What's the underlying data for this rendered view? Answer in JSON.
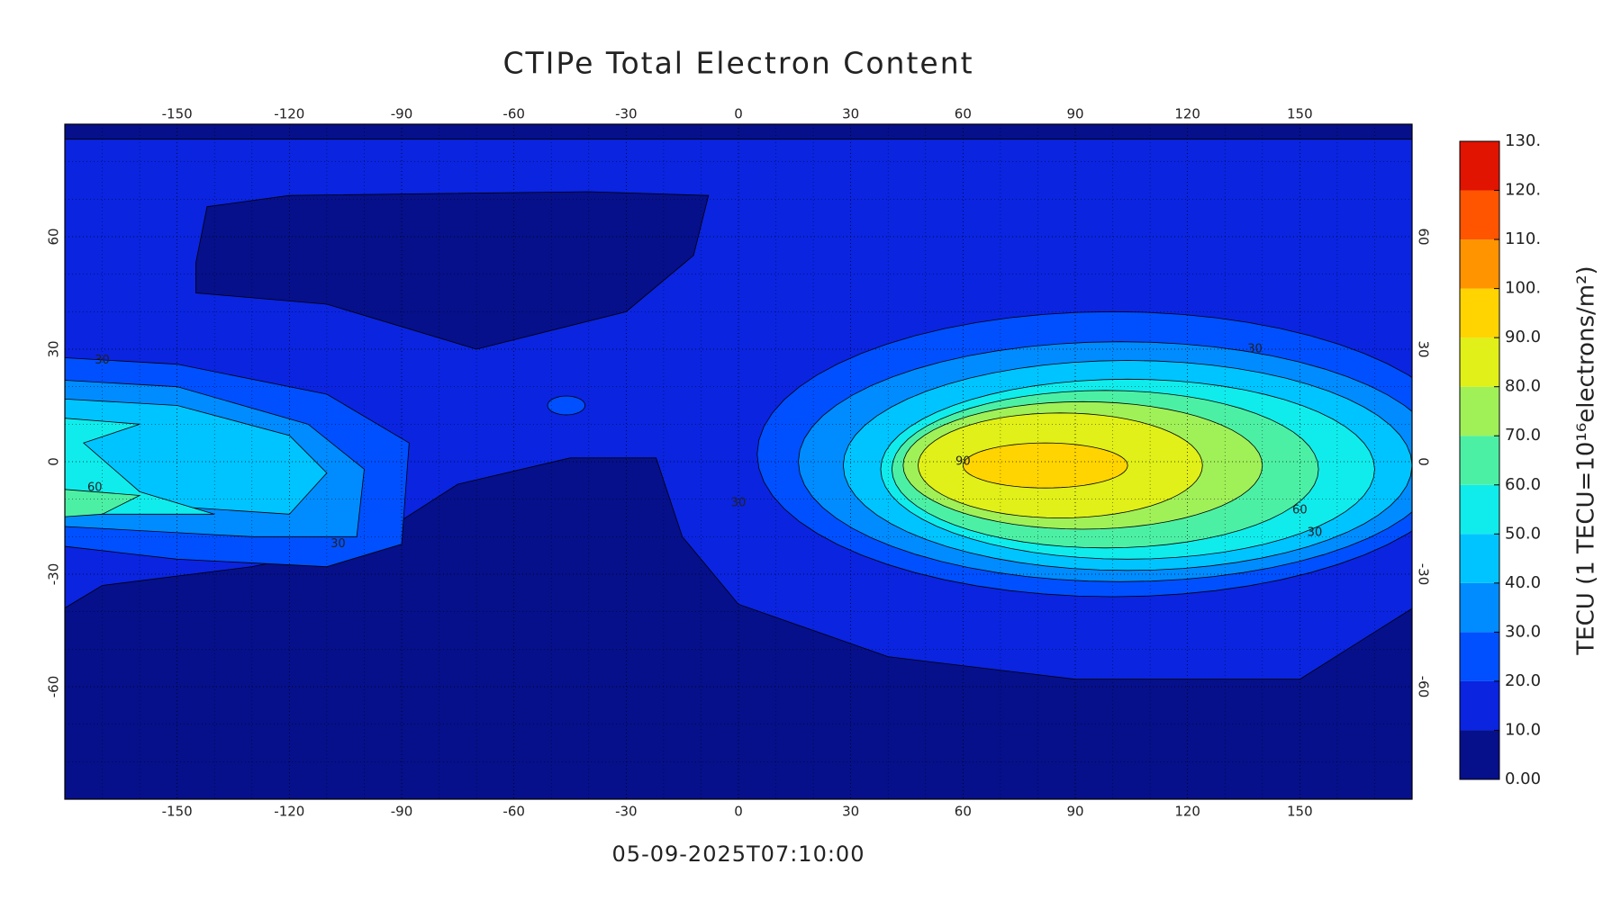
{
  "chart_data": {
    "type": "contour-map",
    "title": "CTIPe Total Electron Content",
    "timestamp": "05-09-2025T07:10:00",
    "xlim": [
      -180,
      180
    ],
    "ylim": [
      -90,
      90
    ],
    "xticks": [
      -150,
      -120,
      -90,
      -60,
      -30,
      0,
      30,
      60,
      90,
      120,
      150
    ],
    "yticks": [
      -60,
      -30,
      0,
      30,
      60
    ],
    "grid": true,
    "contour_labels": [
      30,
      60,
      30,
      90,
      30,
      30,
      60,
      30
    ],
    "colorbar": {
      "label": "TECU (1 TECU=10¹⁶electrons/m²)",
      "lim": [
        0,
        130
      ],
      "ticks": [
        {
          "value": 0,
          "label": "0.00"
        },
        {
          "value": 10,
          "label": "10.0"
        },
        {
          "value": 20,
          "label": "20.0"
        },
        {
          "value": 30,
          "label": "30.0"
        },
        {
          "value": 40,
          "label": "40.0"
        },
        {
          "value": 50,
          "label": "50.0"
        },
        {
          "value": 60,
          "label": "60.0"
        },
        {
          "value": 70,
          "label": "70.0"
        },
        {
          "value": 80,
          "label": "80.0"
        },
        {
          "value": 90,
          "label": "90.0"
        },
        {
          "value": 100,
          "label": "100."
        },
        {
          "value": 110,
          "label": "110."
        },
        {
          "value": 120,
          "label": "120."
        },
        {
          "value": 130,
          "label": "130."
        }
      ],
      "colors": [
        "#06108a",
        "#0a24e0",
        "#0050ff",
        "#008cff",
        "#00c4ff",
        "#10ecec",
        "#4cf0a4",
        "#a0f058",
        "#e0f018",
        "#ffd400",
        "#ff9400",
        "#ff5400",
        "#e01400"
      ]
    }
  }
}
